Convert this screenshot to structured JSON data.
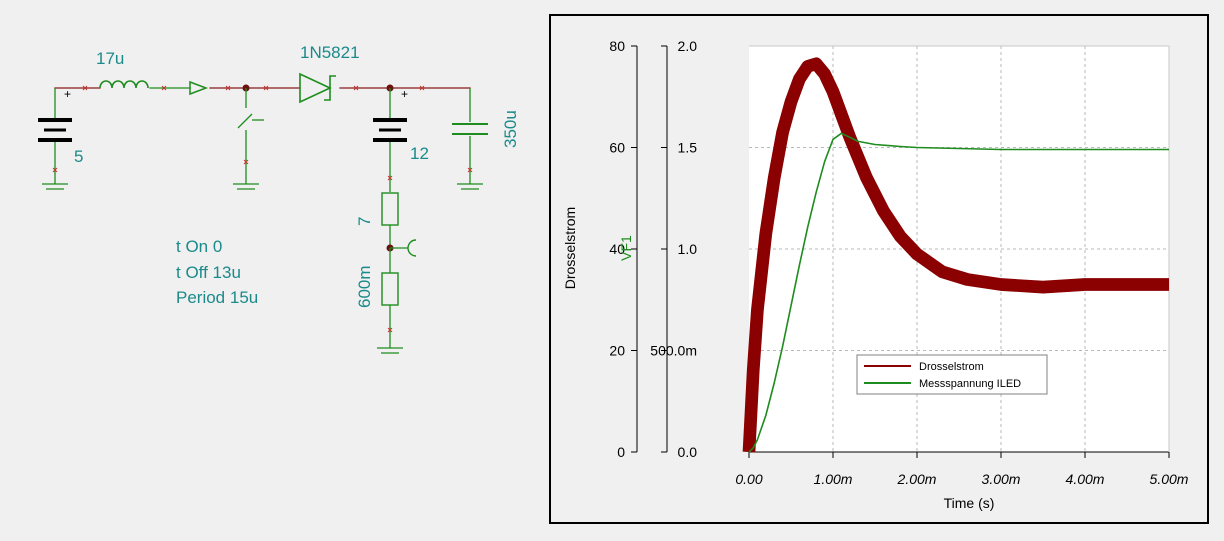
{
  "schematic": {
    "inductor_label": "17u",
    "diode_label": "1N5821",
    "source_left_label": "5",
    "source_right_label": "12",
    "capacitor_label": "350u",
    "resistor_top_label": "7",
    "resistor_bottom_label": "600m",
    "switch_params": [
      "t On 0",
      "t Off 13u",
      "Period 15u"
    ],
    "colors": {
      "wire_red": "#8b1a1a",
      "wire_green": "#1e8c1e",
      "label_teal": "#1b8a8a",
      "node_marker": "#c0392b"
    }
  },
  "chart_data": {
    "type": "line",
    "xlabel": "Time (s)",
    "ylabel_left": "Drosselstrom",
    "ylabel_right": "VF1",
    "x_ticks": [
      "0.00",
      "1.00m",
      "2.00m",
      "3.00m",
      "4.00m",
      "5.00m"
    ],
    "y_left_ticks": [
      "0",
      "20",
      "40",
      "60",
      "80"
    ],
    "y_right_ticks": [
      "0.0",
      "500.0m",
      "1.0",
      "1.5",
      "2.0"
    ],
    "xlim": [
      0,
      0.005
    ],
    "ylim_left": [
      0,
      80
    ],
    "ylim_right": [
      0,
      2
    ],
    "grid": true,
    "legend_position": "center-right",
    "series": [
      {
        "name": "Drosselstrom",
        "axis": "left",
        "color": "#8b0000",
        "x": [
          0,
          5e-05,
          0.0001,
          0.0002,
          0.0003,
          0.0004,
          0.0005,
          0.0006,
          0.0007,
          0.0008,
          0.0009,
          0.001,
          0.0011,
          0.0012,
          0.0014,
          0.0016,
          0.0018,
          0.002,
          0.0023,
          0.0026,
          0.003,
          0.0035,
          0.004,
          0.0045,
          0.005
        ],
        "y": [
          0,
          16,
          28,
          43,
          54,
          63,
          69,
          73.5,
          76,
          76.5,
          74.5,
          71,
          66.5,
          62,
          54,
          47.5,
          42.5,
          39,
          35.5,
          34,
          33,
          32.5,
          33,
          33,
          33
        ],
        "band": 2.5
      },
      {
        "name": "Messspannung ILED",
        "axis": "right",
        "color": "#1e8c1e",
        "x": [
          0,
          5e-05,
          0.0001,
          0.0002,
          0.0003,
          0.0004,
          0.0005,
          0.0006,
          0.0007,
          0.0008,
          0.0009,
          0.001,
          0.0011,
          0.0012,
          0.0013,
          0.0015,
          0.0018,
          0.002,
          0.0025,
          0.003,
          0.0035,
          0.004,
          0.0045,
          0.005
        ],
        "y": [
          0,
          0.02,
          0.06,
          0.18,
          0.34,
          0.52,
          0.72,
          0.92,
          1.11,
          1.28,
          1.43,
          1.54,
          1.57,
          1.55,
          1.53,
          1.515,
          1.505,
          1.5,
          1.495,
          1.49,
          1.49,
          1.49,
          1.49,
          1.49
        ]
      }
    ]
  }
}
